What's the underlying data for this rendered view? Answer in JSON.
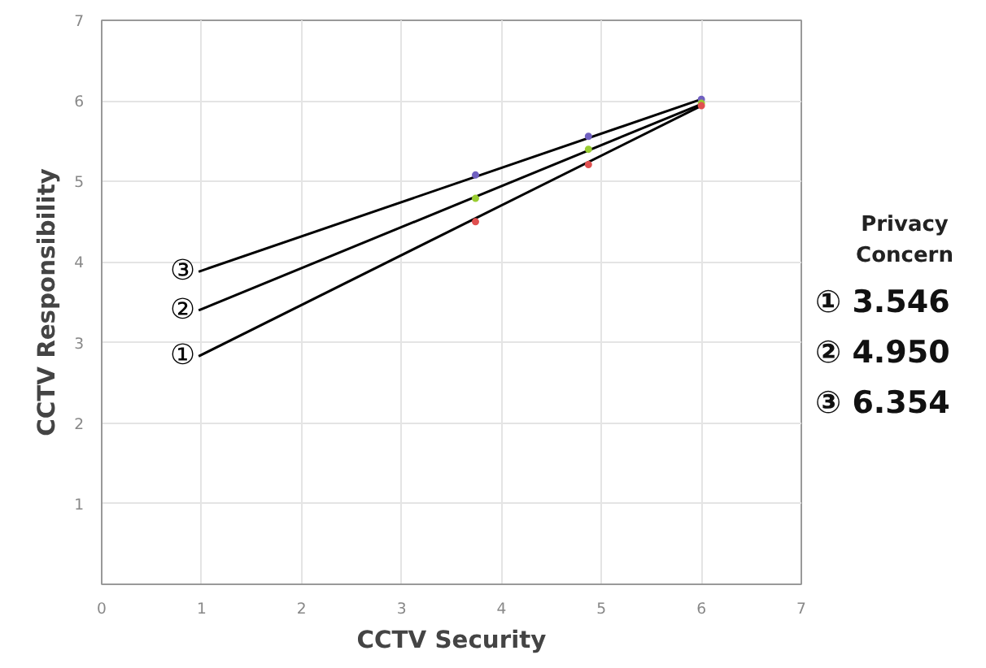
{
  "chart_data": {
    "type": "line",
    "xlabel": "CCTV Security",
    "ylabel": "CCTV Responsibility",
    "xlim": [
      0,
      7
    ],
    "ylim": [
      0,
      7
    ],
    "xticks": [
      0,
      1,
      2,
      3,
      4,
      5,
      6,
      7
    ],
    "yticks": [
      {
        "value": 0,
        "label": null
      },
      1,
      2,
      3,
      4,
      5,
      6,
      7
    ],
    "grid": true,
    "line_style": "solid",
    "series": [
      {
        "name": "①",
        "color": "#000000",
        "x": [
          0.97,
          6
        ],
        "values": [
          2.83,
          5.94
        ]
      },
      {
        "name": "②",
        "color": "#000000",
        "x": [
          0.97,
          6
        ],
        "values": [
          3.4,
          5.96
        ]
      },
      {
        "name": "③",
        "color": "#000000",
        "x": [
          0.97,
          6
        ],
        "values": [
          3.88,
          6.02
        ]
      },
      {
        "type": "scatter",
        "color": "#e05050",
        "x": [
          3.74,
          4.87,
          6
        ],
        "values": [
          4.5,
          5.21,
          5.94
        ]
      },
      {
        "type": "scatter",
        "color": "#9acd32",
        "x": [
          3.74,
          4.87,
          6
        ],
        "values": [
          4.79,
          5.4,
          5.97
        ]
      },
      {
        "type": "scatter",
        "color": "#7060c0",
        "x": [
          3.74,
          4.87,
          6
        ],
        "values": [
          5.08,
          5.56,
          6.02
        ]
      }
    ],
    "annotations": [
      "Privacy Concern",
      "① 3.546",
      "② 4.950",
      "③ 6.354"
    ]
  }
}
